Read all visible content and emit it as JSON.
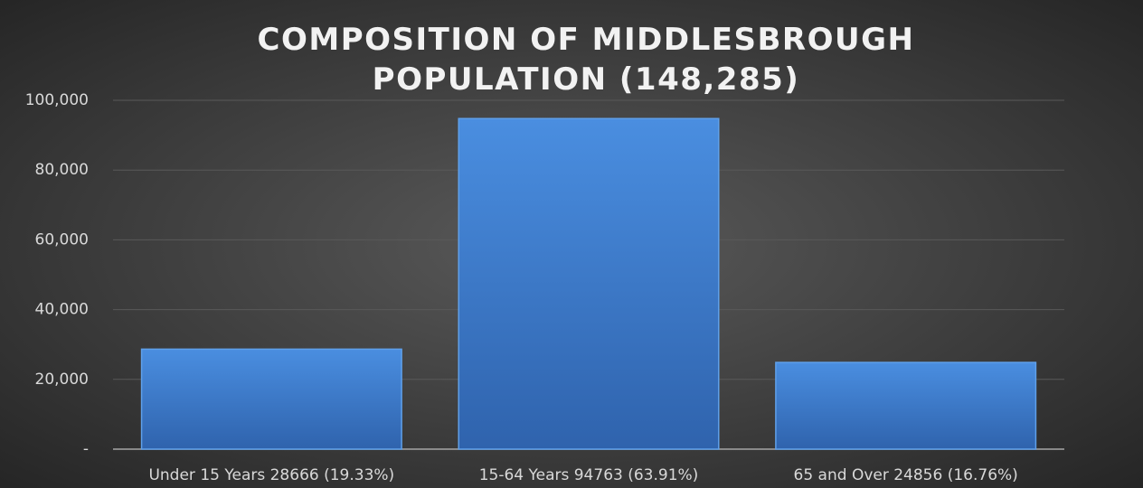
{
  "chart_data": {
    "type": "bar",
    "title": "COMPOSITION OF MIDDLESBROUGH POPULATION (148,285)",
    "categories": [
      "Under 15 Years 28666 (19.33%)",
      "15-64 Years 94763 (63.91%)",
      "65 and Over 24856 (16.76%)"
    ],
    "values": [
      28666,
      94763,
      24856
    ],
    "color": "#3f7fd1",
    "ylim": [
      0,
      100000
    ],
    "yticks": [
      {
        "value": 0,
        "label": "-"
      },
      {
        "value": 20000,
        "label": "20,000"
      },
      {
        "value": 40000,
        "label": "40,000"
      },
      {
        "value": 60000,
        "label": "60,000"
      },
      {
        "value": 80000,
        "label": "80,000"
      },
      {
        "value": 100000,
        "label": "100,000"
      }
    ],
    "grid": true
  }
}
